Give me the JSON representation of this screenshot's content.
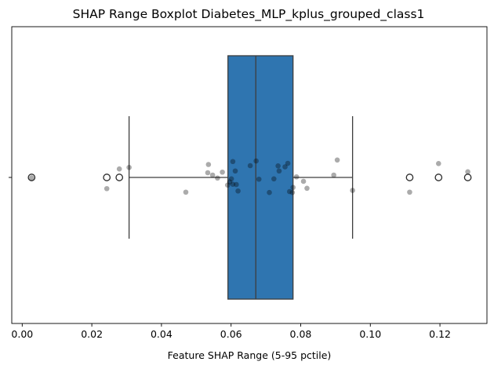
{
  "chart_data": {
    "type": "boxplot",
    "title": "SHAP Range Boxplot Diabetes_MLP_kplus_grouped_class1",
    "xlabel": "Feature SHAP Range (5-95 pctile)",
    "ylabel": "",
    "xlim": [
      -0.003,
      0.1335
    ],
    "x_ticks": [
      0.0,
      0.02,
      0.04,
      0.06,
      0.08,
      0.1,
      0.12
    ],
    "x_tick_labels": [
      "0.00",
      "0.02",
      "0.04",
      "0.06",
      "0.08",
      "0.10",
      "0.12"
    ],
    "grid": false,
    "box": {
      "q1": 0.0591,
      "median": 0.0671,
      "q3": 0.0778,
      "whisker_low": 0.0307,
      "whisker_high": 0.0949,
      "color": "#2f75b0",
      "outliers": [
        0.0027,
        0.0243,
        0.0279,
        0.1113,
        0.1196,
        0.128
      ]
    },
    "points": [
      {
        "x": 0.0027,
        "jitter": 0.003
      },
      {
        "x": 0.0243,
        "jitter": 0.095
      },
      {
        "x": 0.0279,
        "jitter": -0.072
      },
      {
        "x": 0.0307,
        "jitter": -0.085
      },
      {
        "x": 0.047,
        "jitter": 0.125
      },
      {
        "x": 0.0535,
        "jitter": -0.11
      },
      {
        "x": 0.0533,
        "jitter": -0.04
      },
      {
        "x": 0.0547,
        "jitter": -0.02
      },
      {
        "x": 0.0561,
        "jitter": 0.005
      },
      {
        "x": 0.0575,
        "jitter": -0.045
      },
      {
        "x": 0.059,
        "jitter": 0.065
      },
      {
        "x": 0.0596,
        "jitter": 0.038
      },
      {
        "x": 0.0601,
        "jitter": 0.012
      },
      {
        "x": 0.0605,
        "jitter": 0.058
      },
      {
        "x": 0.0605,
        "jitter": -0.135
      },
      {
        "x": 0.0612,
        "jitter": -0.055
      },
      {
        "x": 0.0615,
        "jitter": 0.06
      },
      {
        "x": 0.062,
        "jitter": 0.115
      },
      {
        "x": 0.0655,
        "jitter": -0.1
      },
      {
        "x": 0.0672,
        "jitter": -0.14
      },
      {
        "x": 0.068,
        "jitter": 0.015
      },
      {
        "x": 0.071,
        "jitter": 0.128
      },
      {
        "x": 0.0723,
        "jitter": 0.012
      },
      {
        "x": 0.0735,
        "jitter": -0.098
      },
      {
        "x": 0.0738,
        "jitter": -0.055
      },
      {
        "x": 0.0755,
        "jitter": -0.09
      },
      {
        "x": 0.0763,
        "jitter": -0.12
      },
      {
        "x": 0.0768,
        "jitter": 0.12
      },
      {
        "x": 0.0776,
        "jitter": 0.128
      },
      {
        "x": 0.0778,
        "jitter": 0.085
      },
      {
        "x": 0.0788,
        "jitter": -0.005
      },
      {
        "x": 0.0808,
        "jitter": 0.033
      },
      {
        "x": 0.0818,
        "jitter": 0.092
      },
      {
        "x": 0.0895,
        "jitter": -0.02
      },
      {
        "x": 0.0905,
        "jitter": -0.148
      },
      {
        "x": 0.0949,
        "jitter": 0.11
      },
      {
        "x": 0.1113,
        "jitter": 0.125
      },
      {
        "x": 0.1196,
        "jitter": -0.118
      },
      {
        "x": 0.128,
        "jitter": -0.048
      }
    ]
  }
}
